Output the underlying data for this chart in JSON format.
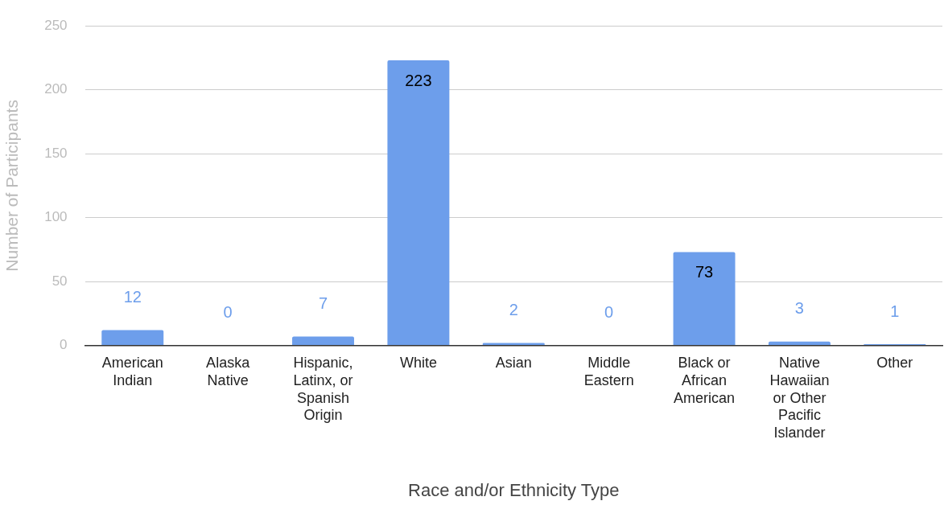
{
  "chart_data": {
    "type": "bar",
    "xlabel": "Race and/or Ethnicity Type",
    "ylabel": "Number of Participants",
    "categories": [
      "American Indian",
      "Alaska Native",
      "Hispanic, Latinx, or Spanish Origin",
      "White",
      "Asian",
      "Middle Eastern",
      "Black or African American",
      "Native Hawaiian or Other Pacific Islander",
      "Other"
    ],
    "values": [
      12,
      0,
      7,
      223,
      2,
      0,
      73,
      3,
      1
    ],
    "color": "#6d9eeb",
    "ylim": [
      0,
      250
    ],
    "yticks": [
      0,
      50,
      100,
      150,
      200,
      250
    ],
    "grid": "y",
    "legend": false,
    "data_labels": true
  }
}
